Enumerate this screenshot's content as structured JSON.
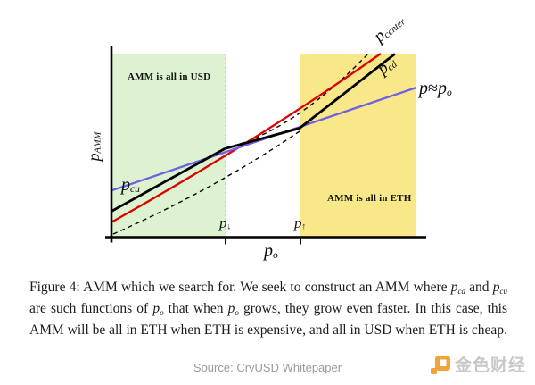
{
  "figure": {
    "y_axis_label": [
      {
        "m": "p",
        "sub": "AMM"
      }
    ],
    "x_axis_label": [
      {
        "m": "p",
        "sub": "o"
      }
    ],
    "tick_p_down": [
      {
        "m": "p",
        "sub": "↓"
      }
    ],
    "tick_p_up": [
      {
        "m": "p",
        "sub": "↑"
      }
    ],
    "label_p_center": [
      {
        "m": "p",
        "sub": "center"
      }
    ],
    "label_p_cd": [
      {
        "m": "p",
        "sub": "cd"
      }
    ],
    "label_p_cu": [
      {
        "m": "p",
        "sub": "cu"
      }
    ],
    "label_p_approx": [
      {
        "m": "p"
      },
      {
        "t": "≈"
      },
      {
        "m": "p",
        "sub": "o"
      }
    ],
    "region_usd_label": "AMM is all in USD",
    "region_eth_label": "AMM is all in ETH"
  },
  "colors": {
    "region_green": "#dcf2d0",
    "region_yellow": "#f9e88a",
    "red_line": "#dd0000",
    "blue_line": "#7061e4",
    "boundary_dotted": "#aeaeae",
    "axis_black": "#000000",
    "logo_accent": "#f0a43a"
  },
  "caption": {
    "segments": [
      {
        "t": "Figure 4: AMM which we search for. We seek to construct an AMM where "
      },
      {
        "m": "p",
        "sub": "cd"
      },
      {
        "t": " and "
      },
      {
        "m": "p",
        "sub": "cu"
      },
      {
        "t": " are such functions of "
      },
      {
        "m": "p",
        "sub": "o"
      },
      {
        "t": " that when "
      },
      {
        "m": "p",
        "sub": "o"
      },
      {
        "t": " grows, they grow even faster. In this case, this AMM will be all in ETH when ETH is expensive, and all in USD when ETH is cheap."
      }
    ]
  },
  "source_text": "Source: CrvUSD Whitepaper",
  "logo": {
    "text": "金色财经"
  },
  "chart_data": {
    "type": "line",
    "title": "",
    "xlabel": "p_o",
    "ylabel": "p_AMM",
    "axis_numeric": false,
    "x_ticks": [
      {
        "label": "p_↓",
        "x": 0.37
      },
      {
        "label": "p_↑",
        "x": 0.62
      }
    ],
    "regions": [
      {
        "label": "AMM is all in USD",
        "x_range": [
          0.0,
          0.37
        ],
        "color": "#dcf2d0"
      },
      {
        "label": "AMM is all in ETH",
        "x_range": [
          0.62,
          1.0
        ],
        "color": "#f9e88a"
      }
    ],
    "series": [
      {
        "name": "p≈p_o",
        "style": "solid",
        "color": "#7061e4",
        "points": [
          [
            0.0,
            0.254
          ],
          [
            1.0,
            0.815
          ]
        ]
      },
      {
        "name": "p_center",
        "style": "solid",
        "color": "#dd0000",
        "points": [
          [
            0.0,
            0.083
          ],
          [
            0.47,
            0.52
          ],
          [
            0.88,
            1.0
          ]
        ]
      },
      {
        "name": "AMM price (p_cu left / p_cd right)",
        "style": "solid",
        "color": "#000000",
        "points": [
          [
            0.0,
            0.141
          ],
          [
            0.37,
            0.479
          ],
          [
            0.617,
            0.591
          ],
          [
            0.927,
            0.993
          ]
        ]
      },
      {
        "name": "p_cu extension",
        "style": "dashed",
        "color": "#000000",
        "points": [
          [
            0.37,
            0.479
          ],
          [
            0.59,
            0.569
          ],
          [
            0.842,
            1.0
          ]
        ]
      },
      {
        "name": "p_cd extension",
        "style": "dashed",
        "color": "#000000",
        "points": [
          [
            0.005,
            0.015
          ],
          [
            0.33,
            0.26
          ],
          [
            0.617,
            0.576
          ]
        ]
      }
    ],
    "legend_position": "none",
    "grid": false
  }
}
